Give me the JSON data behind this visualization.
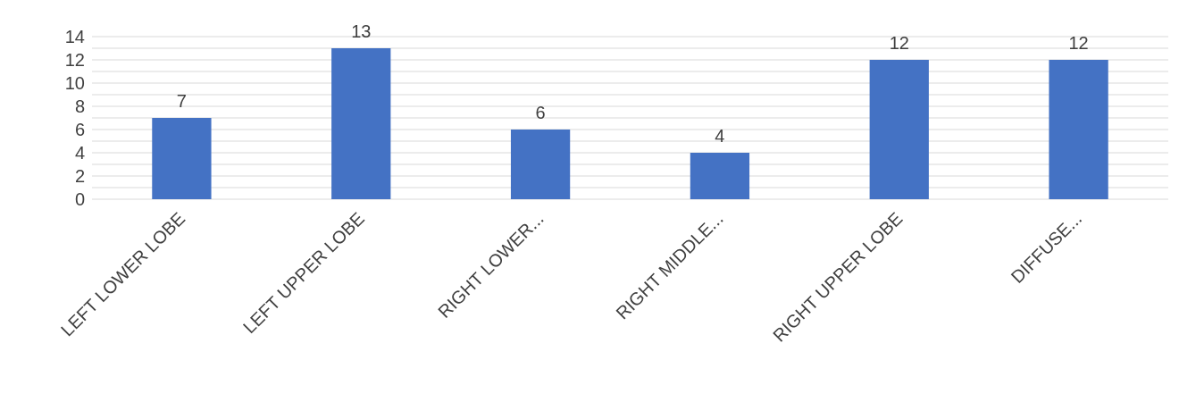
{
  "chart_data": {
    "type": "bar",
    "categories": [
      "LEFT LOWER LOBE",
      "LEFT UPPER LOBE",
      "RIGHT LOWER...",
      "RIGHT MIDDLE...",
      "RIGHT UPPER LOBE",
      "DIFFUSE..."
    ],
    "values": [
      7,
      13,
      6,
      4,
      12,
      12
    ],
    "color": "#4472c4",
    "data_labels": true,
    "grid": "y",
    "ylim": [
      0,
      14
    ],
    "yticks": [
      0,
      {
        "value": 1,
        "label": null
      },
      2,
      {
        "value": 3,
        "label": null
      },
      4,
      {
        "value": 5,
        "label": null
      },
      6,
      {
        "value": 7,
        "label": null
      },
      8,
      {
        "value": 9,
        "label": null
      },
      10,
      {
        "value": 11,
        "label": null
      },
      12,
      {
        "value": 13,
        "label": null
      },
      14
    ]
  }
}
